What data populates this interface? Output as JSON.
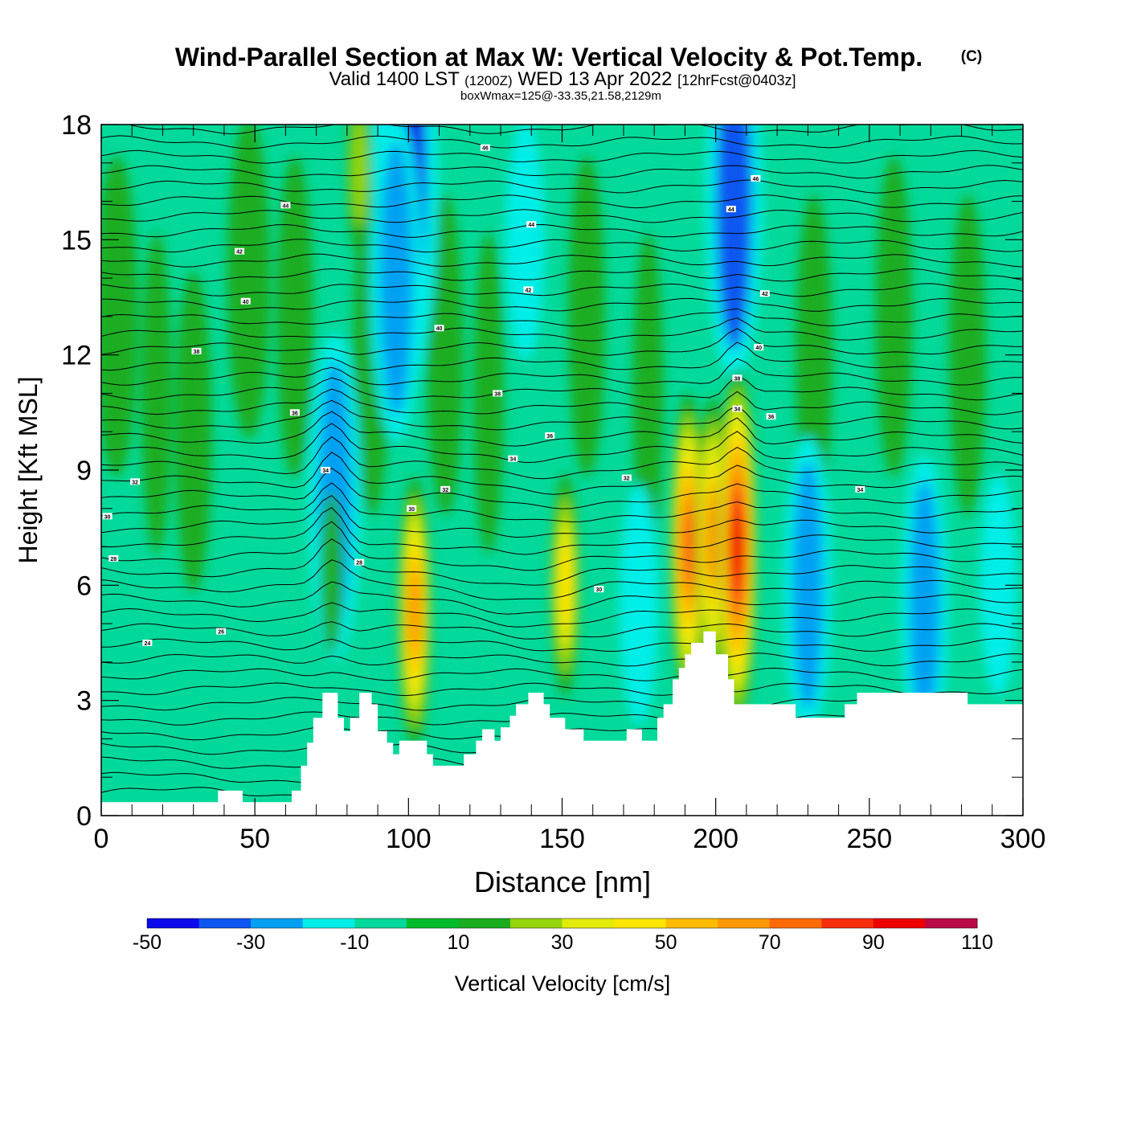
{
  "chart_data": {
    "type": "heatmap",
    "title": "Wind-Parallel Section at Max W: Vertical Velocity & Pot.Temp.",
    "title_mark": "(C)",
    "subtitle": {
      "valid": "Valid 1400 LST",
      "utc": "(1200Z)",
      "date": "WED 13 Apr 2022",
      "forecast": "[12hrFcst@0403z]"
    },
    "box_wmax": "boxWmax=125@-33.35,21.58,2129m",
    "xlabel": "Distance [nm]",
    "ylabel": "Height [Kft MSL]",
    "xlim": [
      0,
      300
    ],
    "ylim": [
      0,
      18
    ],
    "x_ticks": [
      0,
      50,
      100,
      150,
      200,
      250,
      300
    ],
    "y_ticks": [
      0,
      3,
      6,
      9,
      12,
      15,
      18
    ],
    "colorbar": {
      "label": "Vertical Velocity [cm/s]",
      "bounds": [
        -50,
        -40,
        -30,
        -20,
        -10,
        0,
        10,
        20,
        30,
        40,
        50,
        60,
        70,
        80,
        90,
        100,
        110
      ],
      "tick_labels": [
        "-50",
        "-30",
        "-10",
        "10",
        "30",
        "50",
        "70",
        "90",
        "110"
      ],
      "colors": [
        "#0a0aea",
        "#0d56f0",
        "#03a0f2",
        "#00eee8",
        "#03d99a",
        "#00bb2c",
        "#1aad20",
        "#94d50d",
        "#e2eb0a",
        "#fde500",
        "#fdbb00",
        "#fd9804",
        "#fd6a08",
        "#f82d0a",
        "#ee0000",
        "#b80a48"
      ]
    },
    "terrain_kft": [
      [
        0,
        0.35
      ],
      [
        38,
        0.35
      ],
      [
        38,
        0.65
      ],
      [
        46,
        0.65
      ],
      [
        46,
        0.35
      ],
      [
        62,
        0.35
      ],
      [
        62,
        0.65
      ],
      [
        65,
        0.65
      ],
      [
        65,
        1.3
      ],
      [
        67,
        1.3
      ],
      [
        67,
        1.9
      ],
      [
        69,
        1.9
      ],
      [
        69,
        2.55
      ],
      [
        72,
        2.55
      ],
      [
        72,
        3.2
      ],
      [
        77,
        3.2
      ],
      [
        77,
        2.55
      ],
      [
        79,
        2.55
      ],
      [
        79,
        2.2
      ],
      [
        81,
        2.2
      ],
      [
        81,
        2.55
      ],
      [
        84,
        2.55
      ],
      [
        84,
        3.2
      ],
      [
        88,
        3.2
      ],
      [
        88,
        2.9
      ],
      [
        90,
        2.9
      ],
      [
        90,
        2.2
      ],
      [
        93,
        2.2
      ],
      [
        93,
        1.9
      ],
      [
        95,
        1.9
      ],
      [
        95,
        1.6
      ],
      [
        97,
        1.6
      ],
      [
        97,
        1.95
      ],
      [
        106,
        1.95
      ],
      [
        106,
        1.6
      ],
      [
        108,
        1.6
      ],
      [
        108,
        1.3
      ],
      [
        118,
        1.3
      ],
      [
        118,
        1.6
      ],
      [
        122,
        1.6
      ],
      [
        122,
        1.95
      ],
      [
        124,
        1.95
      ],
      [
        124,
        2.25
      ],
      [
        128,
        2.25
      ],
      [
        128,
        1.95
      ],
      [
        130,
        1.95
      ],
      [
        130,
        2.3
      ],
      [
        133,
        2.3
      ],
      [
        133,
        2.6
      ],
      [
        135,
        2.6
      ],
      [
        135,
        2.9
      ],
      [
        139,
        2.9
      ],
      [
        139,
        3.2
      ],
      [
        144,
        3.2
      ],
      [
        144,
        2.9
      ],
      [
        146,
        2.9
      ],
      [
        146,
        2.55
      ],
      [
        151,
        2.55
      ],
      [
        151,
        2.25
      ],
      [
        157,
        2.25
      ],
      [
        157,
        1.95
      ],
      [
        171,
        1.95
      ],
      [
        171,
        2.25
      ],
      [
        176,
        2.25
      ],
      [
        176,
        1.95
      ],
      [
        181,
        1.95
      ],
      [
        181,
        2.55
      ],
      [
        183,
        2.55
      ],
      [
        183,
        2.9
      ],
      [
        186,
        2.9
      ],
      [
        186,
        3.55
      ],
      [
        188,
        3.55
      ],
      [
        188,
        3.85
      ],
      [
        190,
        3.85
      ],
      [
        190,
        4.2
      ],
      [
        192,
        4.2
      ],
      [
        192,
        4.5
      ],
      [
        196,
        4.5
      ],
      [
        196,
        4.8
      ],
      [
        200,
        4.8
      ],
      [
        200,
        4.2
      ],
      [
        204,
        4.2
      ],
      [
        204,
        3.55
      ],
      [
        206,
        3.55
      ],
      [
        206,
        2.9
      ],
      [
        226,
        2.9
      ],
      [
        226,
        2.55
      ],
      [
        242,
        2.55
      ],
      [
        242,
        2.9
      ],
      [
        246,
        2.9
      ],
      [
        246,
        3.2
      ],
      [
        282,
        3.2
      ],
      [
        282,
        2.9
      ],
      [
        300,
        2.9
      ]
    ],
    "updrafts": [
      {
        "x": 102,
        "z": 5.3,
        "w": 65
      },
      {
        "x": 151,
        "z": 6.0,
        "w": 45
      },
      {
        "x": 191,
        "z": 7.0,
        "w": 80
      },
      {
        "x": 199,
        "z": 7.2,
        "w": 70
      },
      {
        "x": 207,
        "z": 7.0,
        "w": 100
      },
      {
        "x": 75,
        "z": 6.3,
        "w": 20
      },
      {
        "x": 84,
        "z": 16.8,
        "w": 25
      }
    ],
    "downdrafts": [
      {
        "x": 99,
        "z": 16.5,
        "w": -45
      },
      {
        "x": 96,
        "z": 14.0,
        "w": -30
      },
      {
        "x": 76,
        "z": 8.3,
        "w": -30
      },
      {
        "x": 206,
        "z": 16.0,
        "w": -35
      },
      {
        "x": 230,
        "z": 6.0,
        "w": -25
      },
      {
        "x": 175,
        "z": 5.5,
        "w": -15
      },
      {
        "x": 268,
        "z": 5.5,
        "w": -25
      },
      {
        "x": 292,
        "z": 6.0,
        "w": -12
      },
      {
        "x": 138,
        "z": 15.0,
        "w": -15
      }
    ],
    "isentrope_labels": [
      {
        "x": 2,
        "z": 7.8,
        "text": "30"
      },
      {
        "x": 4,
        "z": 6.7,
        "text": "28"
      },
      {
        "x": 11,
        "z": 8.7,
        "text": "32"
      },
      {
        "x": 15,
        "z": 4.5,
        "text": "24"
      },
      {
        "x": 31,
        "z": 12.1,
        "text": "38"
      },
      {
        "x": 39,
        "z": 4.8,
        "text": "26"
      },
      {
        "x": 45,
        "z": 14.7,
        "text": "42"
      },
      {
        "x": 47,
        "z": 13.4,
        "text": "40"
      },
      {
        "x": 60,
        "z": 15.9,
        "text": "44"
      },
      {
        "x": 63,
        "z": 10.5,
        "text": "36"
      },
      {
        "x": 73,
        "z": 9.0,
        "text": "34"
      },
      {
        "x": 84,
        "z": 6.6,
        "text": "28"
      },
      {
        "x": 101,
        "z": 8.0,
        "text": "30"
      },
      {
        "x": 110,
        "z": 12.7,
        "text": "40"
      },
      {
        "x": 112,
        "z": 8.5,
        "text": "32"
      },
      {
        "x": 125,
        "z": 17.4,
        "text": "46"
      },
      {
        "x": 129,
        "z": 11.0,
        "text": "38"
      },
      {
        "x": 134,
        "z": 9.3,
        "text": "34"
      },
      {
        "x": 139,
        "z": 13.7,
        "text": "42"
      },
      {
        "x": 140,
        "z": 15.4,
        "text": "44"
      },
      {
        "x": 146,
        "z": 9.9,
        "text": "36"
      },
      {
        "x": 162,
        "z": 5.9,
        "text": "30"
      },
      {
        "x": 171,
        "z": 8.8,
        "text": "32"
      },
      {
        "x": 205,
        "z": 15.8,
        "text": "44"
      },
      {
        "x": 207,
        "z": 11.4,
        "text": "38"
      },
      {
        "x": 207,
        "z": 10.6,
        "text": "34"
      },
      {
        "x": 214,
        "z": 12.2,
        "text": "40"
      },
      {
        "x": 216,
        "z": 13.6,
        "text": "42"
      },
      {
        "x": 213,
        "z": 16.6,
        "text": "46"
      },
      {
        "x": 218,
        "z": 10.4,
        "text": "36"
      },
      {
        "x": 247,
        "z": 8.5,
        "text": "34"
      }
    ]
  }
}
